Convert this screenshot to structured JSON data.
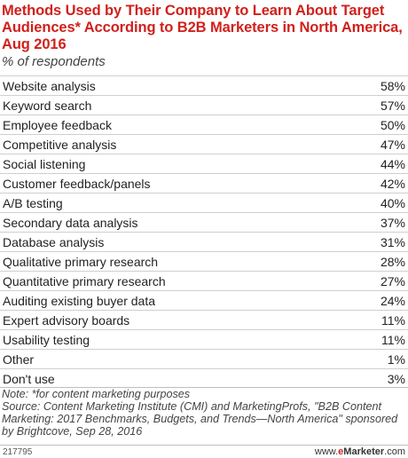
{
  "title": "Methods Used by Their Company to Learn About Target Audiences* According to B2B Marketers in North America, Aug 2016",
  "subtitle": "% of respondents",
  "chart_data": {
    "type": "table",
    "title": "Methods Used by Their Company to Learn About Target Audiences* According to B2B Marketers in North America, Aug 2016",
    "unit": "% of respondents",
    "categories": [
      "Website analysis",
      "Keyword search",
      "Employee feedback",
      "Competitive analysis",
      "Social listening",
      "Customer feedback/panels",
      "A/B testing",
      "Secondary data analysis",
      "Database analysis",
      "Qualitative primary research",
      "Quantitative primary research",
      "Auditing existing buyer data",
      "Expert advisory boards",
      "Usability testing",
      "Other",
      "Don't use"
    ],
    "values": [
      58,
      57,
      50,
      47,
      44,
      42,
      40,
      37,
      31,
      28,
      27,
      24,
      11,
      11,
      1,
      3
    ],
    "value_labels": [
      "58%",
      "57%",
      "50%",
      "47%",
      "44%",
      "42%",
      "40%",
      "37%",
      "31%",
      "28%",
      "27%",
      "24%",
      "11%",
      "11%",
      "1%",
      "3%"
    ]
  },
  "notes": {
    "note": "Note: *for content marketing purposes",
    "source": "Source: Content Marketing Institute (CMI) and MarketingProfs, \"B2B Content Marketing: 2017 Benchmarks, Budgets, and Trends—North America\" sponsored by Brightcove, Sep 28, 2016"
  },
  "footer": {
    "id": "217795",
    "brand_prefix": "www.",
    "brand_accent": "e",
    "brand_name": "Marketer",
    "brand_suffix": ".com"
  },
  "colors": {
    "title": "#d1201b",
    "brand_accent": "#d1201b"
  }
}
